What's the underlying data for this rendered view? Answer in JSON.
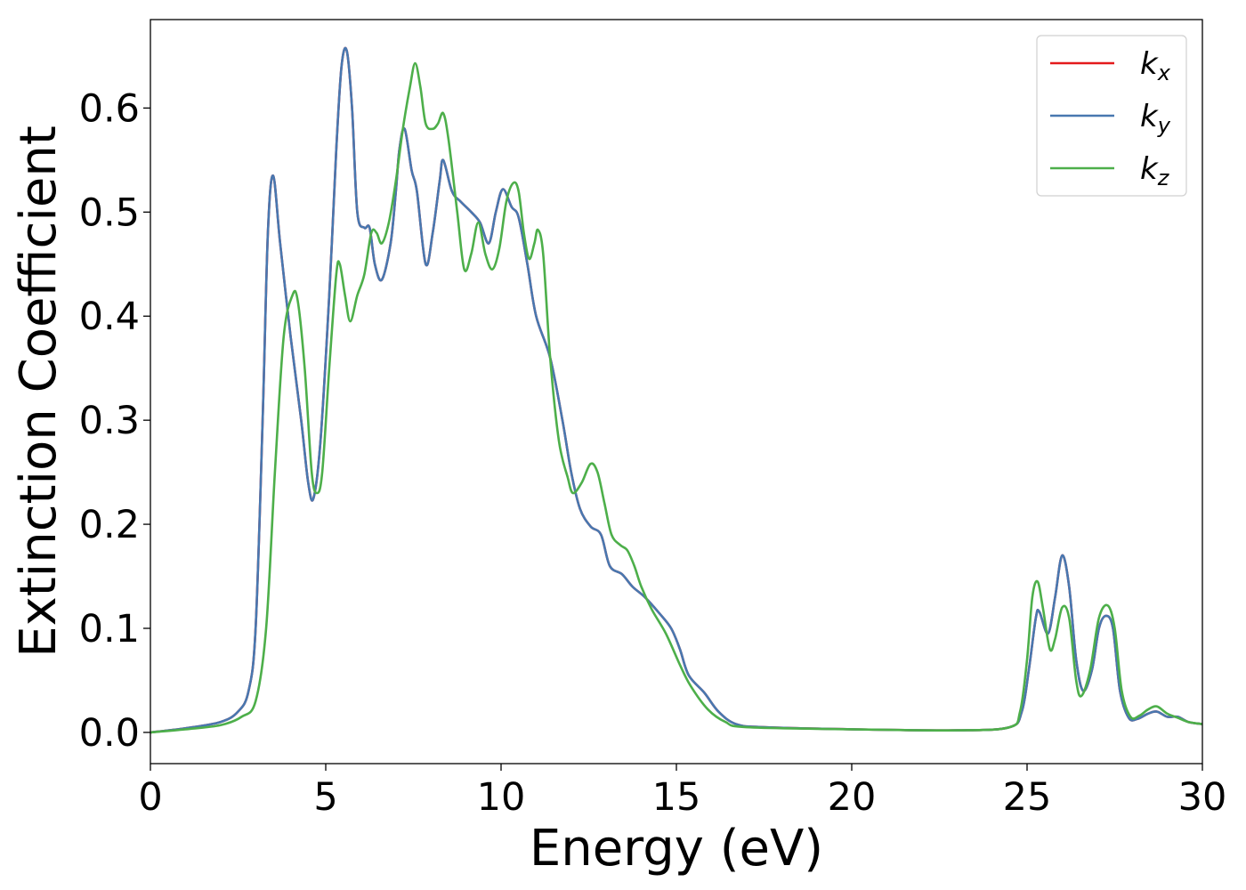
{
  "chart_data": {
    "type": "line",
    "title": "",
    "xlabel": "Energy (eV)",
    "ylabel": "Extinction Coefficient",
    "xlim": [
      0,
      30
    ],
    "ylim": [
      -0.03,
      0.685
    ],
    "x_ticks": [
      0,
      5,
      10,
      15,
      20,
      25,
      30
    ],
    "y_ticks": [
      0.0,
      0.1,
      0.2,
      0.3,
      0.4,
      0.5,
      0.6
    ],
    "x_tick_labels": [
      "0",
      "5",
      "10",
      "15",
      "20",
      "25",
      "30"
    ],
    "y_tick_labels": [
      "0.0",
      "0.1",
      "0.2",
      "0.3",
      "0.4",
      "0.5",
      "0.6"
    ],
    "grid": false,
    "legend_position": "top-right",
    "series": [
      {
        "name": "k",
        "subscript": "x",
        "color": "#e41a1c",
        "points": [
          [
            0,
            0.0
          ],
          [
            1,
            0.004
          ],
          [
            2,
            0.01
          ],
          [
            2.5,
            0.02
          ],
          [
            2.8,
            0.04
          ],
          [
            3.0,
            0.1
          ],
          [
            3.2,
            0.3
          ],
          [
            3.35,
            0.48
          ],
          [
            3.5,
            0.535
          ],
          [
            3.7,
            0.47
          ],
          [
            4.0,
            0.38
          ],
          [
            4.3,
            0.3
          ],
          [
            4.5,
            0.24
          ],
          [
            4.65,
            0.225
          ],
          [
            4.85,
            0.28
          ],
          [
            5.1,
            0.42
          ],
          [
            5.3,
            0.56
          ],
          [
            5.45,
            0.64
          ],
          [
            5.6,
            0.655
          ],
          [
            5.75,
            0.6
          ],
          [
            5.9,
            0.5
          ],
          [
            6.1,
            0.485
          ],
          [
            6.25,
            0.485
          ],
          [
            6.4,
            0.45
          ],
          [
            6.6,
            0.435
          ],
          [
            6.85,
            0.47
          ],
          [
            7.0,
            0.52
          ],
          [
            7.1,
            0.56
          ],
          [
            7.25,
            0.58
          ],
          [
            7.45,
            0.54
          ],
          [
            7.6,
            0.52
          ],
          [
            7.85,
            0.45
          ],
          [
            8.05,
            0.48
          ],
          [
            8.25,
            0.53
          ],
          [
            8.35,
            0.55
          ],
          [
            8.6,
            0.52
          ],
          [
            8.85,
            0.51
          ],
          [
            9.15,
            0.5
          ],
          [
            9.4,
            0.49
          ],
          [
            9.65,
            0.47
          ],
          [
            9.85,
            0.5
          ],
          [
            10.05,
            0.522
          ],
          [
            10.3,
            0.505
          ],
          [
            10.5,
            0.495
          ],
          [
            10.75,
            0.45
          ],
          [
            11.0,
            0.4
          ],
          [
            11.4,
            0.36
          ],
          [
            11.75,
            0.3
          ],
          [
            12.0,
            0.25
          ],
          [
            12.25,
            0.215
          ],
          [
            12.55,
            0.198
          ],
          [
            12.85,
            0.19
          ],
          [
            13.1,
            0.16
          ],
          [
            13.45,
            0.152
          ],
          [
            13.75,
            0.14
          ],
          [
            14.1,
            0.13
          ],
          [
            14.5,
            0.115
          ],
          [
            14.85,
            0.1
          ],
          [
            15.1,
            0.08
          ],
          [
            15.35,
            0.055
          ],
          [
            15.8,
            0.038
          ],
          [
            16.2,
            0.02
          ],
          [
            16.7,
            0.008
          ],
          [
            17.5,
            0.005
          ],
          [
            20,
            0.003
          ],
          [
            23,
            0.002
          ],
          [
            24.5,
            0.005
          ],
          [
            24.85,
            0.02
          ],
          [
            25.05,
            0.06
          ],
          [
            25.25,
            0.11
          ],
          [
            25.35,
            0.116
          ],
          [
            25.6,
            0.095
          ],
          [
            25.8,
            0.13
          ],
          [
            26.0,
            0.17
          ],
          [
            26.2,
            0.14
          ],
          [
            26.4,
            0.07
          ],
          [
            26.6,
            0.04
          ],
          [
            26.85,
            0.06
          ],
          [
            27.05,
            0.1
          ],
          [
            27.25,
            0.112
          ],
          [
            27.45,
            0.1
          ],
          [
            27.65,
            0.04
          ],
          [
            27.9,
            0.014
          ],
          [
            28.15,
            0.013
          ],
          [
            28.45,
            0.018
          ],
          [
            28.7,
            0.02
          ],
          [
            29.0,
            0.015
          ],
          [
            29.3,
            0.015
          ],
          [
            29.6,
            0.01
          ],
          [
            30,
            0.008
          ]
        ]
      },
      {
        "name": "k",
        "subscript": "y",
        "color": "#4878b0",
        "points": [
          [
            0,
            0.0
          ],
          [
            1,
            0.004
          ],
          [
            2,
            0.01
          ],
          [
            2.5,
            0.02
          ],
          [
            2.8,
            0.04
          ],
          [
            3.0,
            0.1
          ],
          [
            3.2,
            0.3
          ],
          [
            3.35,
            0.48
          ],
          [
            3.5,
            0.535
          ],
          [
            3.7,
            0.47
          ],
          [
            4.0,
            0.38
          ],
          [
            4.3,
            0.3
          ],
          [
            4.5,
            0.24
          ],
          [
            4.65,
            0.225
          ],
          [
            4.85,
            0.28
          ],
          [
            5.1,
            0.42
          ],
          [
            5.3,
            0.56
          ],
          [
            5.45,
            0.64
          ],
          [
            5.6,
            0.655
          ],
          [
            5.75,
            0.6
          ],
          [
            5.9,
            0.5
          ],
          [
            6.1,
            0.485
          ],
          [
            6.25,
            0.485
          ],
          [
            6.4,
            0.45
          ],
          [
            6.6,
            0.435
          ],
          [
            6.85,
            0.47
          ],
          [
            7.0,
            0.52
          ],
          [
            7.1,
            0.56
          ],
          [
            7.25,
            0.58
          ],
          [
            7.45,
            0.54
          ],
          [
            7.6,
            0.52
          ],
          [
            7.85,
            0.45
          ],
          [
            8.05,
            0.48
          ],
          [
            8.25,
            0.53
          ],
          [
            8.35,
            0.55
          ],
          [
            8.6,
            0.52
          ],
          [
            8.85,
            0.51
          ],
          [
            9.15,
            0.5
          ],
          [
            9.4,
            0.49
          ],
          [
            9.65,
            0.47
          ],
          [
            9.85,
            0.5
          ],
          [
            10.05,
            0.522
          ],
          [
            10.3,
            0.505
          ],
          [
            10.5,
            0.495
          ],
          [
            10.75,
            0.45
          ],
          [
            11.0,
            0.4
          ],
          [
            11.4,
            0.36
          ],
          [
            11.75,
            0.3
          ],
          [
            12.0,
            0.25
          ],
          [
            12.25,
            0.215
          ],
          [
            12.55,
            0.198
          ],
          [
            12.85,
            0.19
          ],
          [
            13.1,
            0.16
          ],
          [
            13.45,
            0.152
          ],
          [
            13.75,
            0.14
          ],
          [
            14.1,
            0.13
          ],
          [
            14.5,
            0.115
          ],
          [
            14.85,
            0.1
          ],
          [
            15.1,
            0.08
          ],
          [
            15.35,
            0.055
          ],
          [
            15.8,
            0.038
          ],
          [
            16.2,
            0.02
          ],
          [
            16.7,
            0.008
          ],
          [
            17.5,
            0.005
          ],
          [
            20,
            0.003
          ],
          [
            23,
            0.002
          ],
          [
            24.5,
            0.005
          ],
          [
            24.85,
            0.02
          ],
          [
            25.05,
            0.06
          ],
          [
            25.25,
            0.11
          ],
          [
            25.35,
            0.116
          ],
          [
            25.6,
            0.095
          ],
          [
            25.8,
            0.13
          ],
          [
            26.0,
            0.17
          ],
          [
            26.2,
            0.14
          ],
          [
            26.4,
            0.07
          ],
          [
            26.6,
            0.04
          ],
          [
            26.85,
            0.06
          ],
          [
            27.05,
            0.1
          ],
          [
            27.25,
            0.112
          ],
          [
            27.45,
            0.1
          ],
          [
            27.65,
            0.04
          ],
          [
            27.9,
            0.014
          ],
          [
            28.15,
            0.013
          ],
          [
            28.45,
            0.018
          ],
          [
            28.7,
            0.02
          ],
          [
            29.0,
            0.015
          ],
          [
            29.3,
            0.015
          ],
          [
            29.6,
            0.01
          ],
          [
            30,
            0.008
          ]
        ]
      },
      {
        "name": "k",
        "subscript": "z",
        "color": "#4daf4a",
        "points": [
          [
            0,
            0.0
          ],
          [
            1,
            0.003
          ],
          [
            2,
            0.007
          ],
          [
            2.6,
            0.015
          ],
          [
            3.0,
            0.03
          ],
          [
            3.3,
            0.1
          ],
          [
            3.55,
            0.25
          ],
          [
            3.8,
            0.38
          ],
          [
            4.05,
            0.42
          ],
          [
            4.2,
            0.415
          ],
          [
            4.4,
            0.35
          ],
          [
            4.6,
            0.25
          ],
          [
            4.75,
            0.23
          ],
          [
            4.9,
            0.25
          ],
          [
            5.1,
            0.35
          ],
          [
            5.3,
            0.44
          ],
          [
            5.4,
            0.45
          ],
          [
            5.55,
            0.42
          ],
          [
            5.7,
            0.395
          ],
          [
            5.9,
            0.42
          ],
          [
            6.1,
            0.44
          ],
          [
            6.3,
            0.48
          ],
          [
            6.45,
            0.48
          ],
          [
            6.6,
            0.47
          ],
          [
            6.8,
            0.49
          ],
          [
            7.0,
            0.53
          ],
          [
            7.2,
            0.58
          ],
          [
            7.4,
            0.62
          ],
          [
            7.55,
            0.643
          ],
          [
            7.7,
            0.62
          ],
          [
            7.85,
            0.585
          ],
          [
            8.05,
            0.58
          ],
          [
            8.2,
            0.585
          ],
          [
            8.35,
            0.595
          ],
          [
            8.5,
            0.57
          ],
          [
            8.75,
            0.5
          ],
          [
            8.95,
            0.445
          ],
          [
            9.15,
            0.46
          ],
          [
            9.35,
            0.49
          ],
          [
            9.55,
            0.46
          ],
          [
            9.75,
            0.445
          ],
          [
            9.95,
            0.465
          ],
          [
            10.15,
            0.51
          ],
          [
            10.35,
            0.528
          ],
          [
            10.5,
            0.52
          ],
          [
            10.65,
            0.48
          ],
          [
            10.8,
            0.455
          ],
          [
            10.95,
            0.47
          ],
          [
            11.05,
            0.483
          ],
          [
            11.2,
            0.46
          ],
          [
            11.4,
            0.36
          ],
          [
            11.65,
            0.28
          ],
          [
            11.9,
            0.245
          ],
          [
            12.05,
            0.23
          ],
          [
            12.3,
            0.24
          ],
          [
            12.55,
            0.258
          ],
          [
            12.75,
            0.25
          ],
          [
            12.95,
            0.22
          ],
          [
            13.15,
            0.19
          ],
          [
            13.4,
            0.18
          ],
          [
            13.6,
            0.175
          ],
          [
            13.8,
            0.16
          ],
          [
            14.0,
            0.14
          ],
          [
            14.3,
            0.118
          ],
          [
            14.7,
            0.095
          ],
          [
            15.1,
            0.065
          ],
          [
            15.4,
            0.045
          ],
          [
            15.9,
            0.022
          ],
          [
            16.4,
            0.01
          ],
          [
            17,
            0.005
          ],
          [
            20,
            0.003
          ],
          [
            23,
            0.002
          ],
          [
            24.5,
            0.005
          ],
          [
            24.8,
            0.02
          ],
          [
            25.0,
            0.07
          ],
          [
            25.15,
            0.13
          ],
          [
            25.3,
            0.145
          ],
          [
            25.45,
            0.12
          ],
          [
            25.65,
            0.08
          ],
          [
            25.8,
            0.09
          ],
          [
            26.0,
            0.12
          ],
          [
            26.2,
            0.11
          ],
          [
            26.4,
            0.05
          ],
          [
            26.55,
            0.035
          ],
          [
            26.8,
            0.06
          ],
          [
            27.05,
            0.11
          ],
          [
            27.3,
            0.122
          ],
          [
            27.5,
            0.1
          ],
          [
            27.7,
            0.04
          ],
          [
            27.95,
            0.015
          ],
          [
            28.2,
            0.016
          ],
          [
            28.45,
            0.022
          ],
          [
            28.7,
            0.025
          ],
          [
            29.0,
            0.018
          ],
          [
            29.3,
            0.014
          ],
          [
            29.6,
            0.01
          ],
          [
            30,
            0.008
          ]
        ]
      }
    ]
  }
}
